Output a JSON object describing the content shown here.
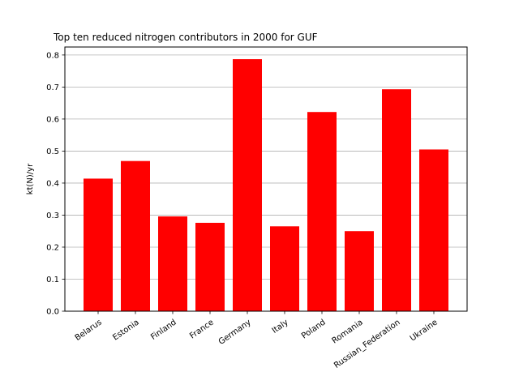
{
  "chart_data": {
    "type": "bar",
    "title": "Top ten reduced nitrogen contributors in 2000 for  GUF",
    "xlabel": "",
    "ylabel": "kt(N)/yr",
    "categories": [
      "Belarus",
      "Estonia",
      "Finland",
      "France",
      "Germany",
      "Italy",
      "Poland",
      "Romania",
      "Russian_Federation",
      "Ukraine"
    ],
    "values": [
      0.414,
      0.469,
      0.296,
      0.276,
      0.787,
      0.265,
      0.622,
      0.25,
      0.693,
      0.505
    ],
    "ylim": [
      0,
      0.825
    ],
    "yticks": [
      "0.0",
      "0.1",
      "0.2",
      "0.3",
      "0.4",
      "0.5",
      "0.6",
      "0.7",
      "0.8"
    ],
    "grid": "y",
    "bar_color": "#ff0000",
    "grid_color": "#b0b0b0"
  }
}
